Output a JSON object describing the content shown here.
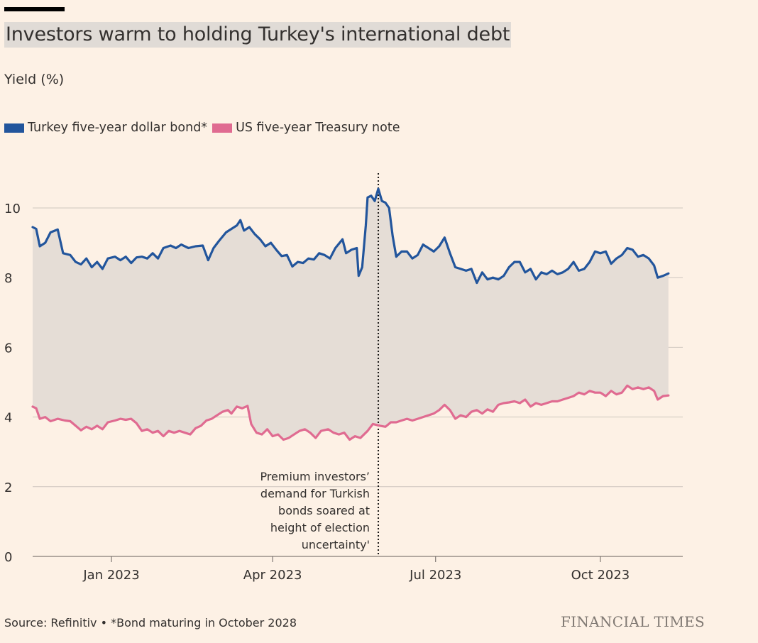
{
  "title": "Investors warm to holding Turkey's international debt",
  "subtitle": "Yield (%)",
  "legend": [
    {
      "label": "Turkey five-year dollar bond*",
      "color": "#22559c"
    },
    {
      "label": "US five-year Treasury note",
      "color": "#e06b91"
    }
  ],
  "footer": {
    "source": "Source: Refinitiv • *Bond maturing in October 2028",
    "brand": "FINANCIAL TIMES"
  },
  "chart_data": {
    "type": "line",
    "fill_between_series": true,
    "fill_color": "#e5ddd6",
    "x_unit": "date",
    "x_range": [
      "2022-11-18",
      "2023-11-16"
    ],
    "y_range": [
      0,
      10.5
    ],
    "y_ticks": [
      0,
      2,
      4,
      6,
      8,
      10
    ],
    "x_ticks": [
      {
        "label": "Jan 2023",
        "date": "2023-01-01"
      },
      {
        "label": "Apr 2023",
        "date": "2023-04-01"
      },
      {
        "label": "Jul 2023",
        "date": "2023-07-01"
      },
      {
        "label": "Oct 2023",
        "date": "2023-10-01"
      }
    ],
    "grid": true,
    "annotation": {
      "date": "2023-05-30",
      "lines": [
        "Premium investors’",
        "demand for Turkish",
        "bonds soared at",
        "height of election",
        "uncertainty'"
      ]
    },
    "series": [
      {
        "name": "Turkey five-year dollar bond*",
        "color": "#22559c",
        "points": [
          [
            "2022-11-18",
            9.45
          ],
          [
            "2022-11-20",
            9.4
          ],
          [
            "2022-11-22",
            8.9
          ],
          [
            "2022-11-25",
            9.0
          ],
          [
            "2022-11-28",
            9.3
          ],
          [
            "2022-12-02",
            9.38
          ],
          [
            "2022-12-05",
            8.7
          ],
          [
            "2022-12-09",
            8.65
          ],
          [
            "2022-12-12",
            8.45
          ],
          [
            "2022-12-15",
            8.38
          ],
          [
            "2022-12-18",
            8.55
          ],
          [
            "2022-12-21",
            8.3
          ],
          [
            "2022-12-24",
            8.45
          ],
          [
            "2022-12-27",
            8.25
          ],
          [
            "2022-12-30",
            8.55
          ],
          [
            "2023-01-03",
            8.6
          ],
          [
            "2023-01-06",
            8.5
          ],
          [
            "2023-01-09",
            8.6
          ],
          [
            "2023-01-12",
            8.42
          ],
          [
            "2023-01-15",
            8.58
          ],
          [
            "2023-01-18",
            8.6
          ],
          [
            "2023-01-21",
            8.55
          ],
          [
            "2023-01-24",
            8.7
          ],
          [
            "2023-01-27",
            8.55
          ],
          [
            "2023-01-30",
            8.85
          ],
          [
            "2023-02-03",
            8.92
          ],
          [
            "2023-02-06",
            8.85
          ],
          [
            "2023-02-09",
            8.95
          ],
          [
            "2023-02-13",
            8.85
          ],
          [
            "2023-02-17",
            8.9
          ],
          [
            "2023-02-21",
            8.92
          ],
          [
            "2023-02-24",
            8.5
          ],
          [
            "2023-02-27",
            8.85
          ],
          [
            "2023-03-02",
            9.05
          ],
          [
            "2023-03-06",
            9.3
          ],
          [
            "2023-03-09",
            9.4
          ],
          [
            "2023-03-12",
            9.5
          ],
          [
            "2023-03-14",
            9.65
          ],
          [
            "2023-03-16",
            9.35
          ],
          [
            "2023-03-19",
            9.45
          ],
          [
            "2023-03-22",
            9.25
          ],
          [
            "2023-03-25",
            9.1
          ],
          [
            "2023-03-28",
            8.9
          ],
          [
            "2023-03-31",
            9.0
          ],
          [
            "2023-04-03",
            8.8
          ],
          [
            "2023-04-06",
            8.62
          ],
          [
            "2023-04-09",
            8.65
          ],
          [
            "2023-04-12",
            8.32
          ],
          [
            "2023-04-15",
            8.45
          ],
          [
            "2023-04-18",
            8.42
          ],
          [
            "2023-04-21",
            8.55
          ],
          [
            "2023-04-24",
            8.52
          ],
          [
            "2023-04-27",
            8.7
          ],
          [
            "2023-04-30",
            8.65
          ],
          [
            "2023-05-03",
            8.55
          ],
          [
            "2023-05-06",
            8.85
          ],
          [
            "2023-05-10",
            9.1
          ],
          [
            "2023-05-12",
            8.7
          ],
          [
            "2023-05-15",
            8.8
          ],
          [
            "2023-05-18",
            8.85
          ],
          [
            "2023-05-19",
            8.05
          ],
          [
            "2023-05-21",
            8.3
          ],
          [
            "2023-05-23",
            9.5
          ],
          [
            "2023-05-24",
            10.3
          ],
          [
            "2023-05-26",
            10.35
          ],
          [
            "2023-05-28",
            10.2
          ],
          [
            "2023-05-30",
            10.55
          ],
          [
            "2023-06-01",
            10.2
          ],
          [
            "2023-06-03",
            10.15
          ],
          [
            "2023-06-05",
            10.0
          ],
          [
            "2023-06-07",
            9.2
          ],
          [
            "2023-06-09",
            8.6
          ],
          [
            "2023-06-12",
            8.75
          ],
          [
            "2023-06-15",
            8.75
          ],
          [
            "2023-06-18",
            8.55
          ],
          [
            "2023-06-21",
            8.65
          ],
          [
            "2023-06-24",
            8.95
          ],
          [
            "2023-06-27",
            8.85
          ],
          [
            "2023-06-30",
            8.75
          ],
          [
            "2023-07-03",
            8.9
          ],
          [
            "2023-07-06",
            9.15
          ],
          [
            "2023-07-09",
            8.7
          ],
          [
            "2023-07-12",
            8.3
          ],
          [
            "2023-07-15",
            8.25
          ],
          [
            "2023-07-18",
            8.2
          ],
          [
            "2023-07-21",
            8.25
          ],
          [
            "2023-07-24",
            7.85
          ],
          [
            "2023-07-27",
            8.15
          ],
          [
            "2023-07-30",
            7.95
          ],
          [
            "2023-08-02",
            8.0
          ],
          [
            "2023-08-05",
            7.95
          ],
          [
            "2023-08-08",
            8.05
          ],
          [
            "2023-08-11",
            8.3
          ],
          [
            "2023-08-14",
            8.45
          ],
          [
            "2023-08-17",
            8.45
          ],
          [
            "2023-08-20",
            8.15
          ],
          [
            "2023-08-23",
            8.25
          ],
          [
            "2023-08-26",
            7.95
          ],
          [
            "2023-08-29",
            8.15
          ],
          [
            "2023-09-01",
            8.1
          ],
          [
            "2023-09-04",
            8.2
          ],
          [
            "2023-09-07",
            8.1
          ],
          [
            "2023-09-10",
            8.15
          ],
          [
            "2023-09-13",
            8.25
          ],
          [
            "2023-09-16",
            8.45
          ],
          [
            "2023-09-19",
            8.2
          ],
          [
            "2023-09-22",
            8.25
          ],
          [
            "2023-09-25",
            8.45
          ],
          [
            "2023-09-28",
            8.75
          ],
          [
            "2023-10-01",
            8.7
          ],
          [
            "2023-10-04",
            8.75
          ],
          [
            "2023-10-07",
            8.4
          ],
          [
            "2023-10-10",
            8.55
          ],
          [
            "2023-10-13",
            8.65
          ],
          [
            "2023-10-16",
            8.85
          ],
          [
            "2023-10-19",
            8.8
          ],
          [
            "2023-10-22",
            8.6
          ],
          [
            "2023-10-25",
            8.65
          ],
          [
            "2023-10-28",
            8.55
          ],
          [
            "2023-10-31",
            8.35
          ],
          [
            "2023-11-02",
            8.0
          ],
          [
            "2023-11-05",
            8.05
          ],
          [
            "2023-11-08",
            8.12
          ]
        ]
      },
      {
        "name": "US five-year Treasury note",
        "color": "#e06b91",
        "points": [
          [
            "2022-11-18",
            4.3
          ],
          [
            "2022-11-20",
            4.25
          ],
          [
            "2022-11-22",
            3.95
          ],
          [
            "2022-11-25",
            4.0
          ],
          [
            "2022-11-28",
            3.88
          ],
          [
            "2022-12-02",
            3.95
          ],
          [
            "2022-12-06",
            3.9
          ],
          [
            "2022-12-09",
            3.88
          ],
          [
            "2022-12-12",
            3.75
          ],
          [
            "2022-12-15",
            3.62
          ],
          [
            "2022-12-18",
            3.72
          ],
          [
            "2022-12-21",
            3.65
          ],
          [
            "2022-12-24",
            3.75
          ],
          [
            "2022-12-27",
            3.65
          ],
          [
            "2022-12-30",
            3.85
          ],
          [
            "2023-01-03",
            3.9
          ],
          [
            "2023-01-06",
            3.95
          ],
          [
            "2023-01-09",
            3.92
          ],
          [
            "2023-01-12",
            3.95
          ],
          [
            "2023-01-15",
            3.82
          ],
          [
            "2023-01-18",
            3.6
          ],
          [
            "2023-01-21",
            3.65
          ],
          [
            "2023-01-24",
            3.55
          ],
          [
            "2023-01-27",
            3.6
          ],
          [
            "2023-01-30",
            3.45
          ],
          [
            "2023-02-02",
            3.6
          ],
          [
            "2023-02-05",
            3.55
          ],
          [
            "2023-02-08",
            3.6
          ],
          [
            "2023-02-11",
            3.55
          ],
          [
            "2023-02-14",
            3.5
          ],
          [
            "2023-02-17",
            3.68
          ],
          [
            "2023-02-20",
            3.75
          ],
          [
            "2023-02-23",
            3.9
          ],
          [
            "2023-02-26",
            3.95
          ],
          [
            "2023-03-01",
            4.05
          ],
          [
            "2023-03-04",
            4.15
          ],
          [
            "2023-03-07",
            4.2
          ],
          [
            "2023-03-09",
            4.1
          ],
          [
            "2023-03-12",
            4.3
          ],
          [
            "2023-03-15",
            4.25
          ],
          [
            "2023-03-18",
            4.32
          ],
          [
            "2023-03-20",
            3.8
          ],
          [
            "2023-03-23",
            3.55
          ],
          [
            "2023-03-26",
            3.5
          ],
          [
            "2023-03-29",
            3.65
          ],
          [
            "2023-04-01",
            3.45
          ],
          [
            "2023-04-04",
            3.5
          ],
          [
            "2023-04-07",
            3.35
          ],
          [
            "2023-04-10",
            3.4
          ],
          [
            "2023-04-13",
            3.5
          ],
          [
            "2023-04-16",
            3.6
          ],
          [
            "2023-04-19",
            3.65
          ],
          [
            "2023-04-22",
            3.55
          ],
          [
            "2023-04-25",
            3.4
          ],
          [
            "2023-04-28",
            3.6
          ],
          [
            "2023-05-02",
            3.65
          ],
          [
            "2023-05-05",
            3.55
          ],
          [
            "2023-05-08",
            3.5
          ],
          [
            "2023-05-11",
            3.55
          ],
          [
            "2023-05-14",
            3.35
          ],
          [
            "2023-05-17",
            3.45
          ],
          [
            "2023-05-20",
            3.4
          ],
          [
            "2023-05-24",
            3.6
          ],
          [
            "2023-05-27",
            3.8
          ],
          [
            "2023-05-31",
            3.75
          ],
          [
            "2023-06-03",
            3.72
          ],
          [
            "2023-06-06",
            3.85
          ],
          [
            "2023-06-09",
            3.85
          ],
          [
            "2023-06-12",
            3.9
          ],
          [
            "2023-06-15",
            3.95
          ],
          [
            "2023-06-18",
            3.9
          ],
          [
            "2023-06-21",
            3.95
          ],
          [
            "2023-06-24",
            4.0
          ],
          [
            "2023-06-27",
            4.05
          ],
          [
            "2023-06-30",
            4.1
          ],
          [
            "2023-07-03",
            4.2
          ],
          [
            "2023-07-06",
            4.35
          ],
          [
            "2023-07-09",
            4.2
          ],
          [
            "2023-07-12",
            3.95
          ],
          [
            "2023-07-15",
            4.05
          ],
          [
            "2023-07-18",
            4.0
          ],
          [
            "2023-07-21",
            4.15
          ],
          [
            "2023-07-24",
            4.2
          ],
          [
            "2023-07-27",
            4.1
          ],
          [
            "2023-07-30",
            4.22
          ],
          [
            "2023-08-02",
            4.15
          ],
          [
            "2023-08-05",
            4.35
          ],
          [
            "2023-08-08",
            4.4
          ],
          [
            "2023-08-11",
            4.42
          ],
          [
            "2023-08-14",
            4.45
          ],
          [
            "2023-08-17",
            4.4
          ],
          [
            "2023-08-20",
            4.5
          ],
          [
            "2023-08-23",
            4.3
          ],
          [
            "2023-08-26",
            4.4
          ],
          [
            "2023-08-29",
            4.35
          ],
          [
            "2023-09-01",
            4.4
          ],
          [
            "2023-09-04",
            4.45
          ],
          [
            "2023-09-07",
            4.45
          ],
          [
            "2023-09-10",
            4.5
          ],
          [
            "2023-09-13",
            4.55
          ],
          [
            "2023-09-16",
            4.6
          ],
          [
            "2023-09-19",
            4.7
          ],
          [
            "2023-09-22",
            4.65
          ],
          [
            "2023-09-25",
            4.75
          ],
          [
            "2023-09-28",
            4.7
          ],
          [
            "2023-10-01",
            4.7
          ],
          [
            "2023-10-04",
            4.6
          ],
          [
            "2023-10-07",
            4.75
          ],
          [
            "2023-10-10",
            4.65
          ],
          [
            "2023-10-13",
            4.7
          ],
          [
            "2023-10-16",
            4.9
          ],
          [
            "2023-10-19",
            4.8
          ],
          [
            "2023-10-22",
            4.85
          ],
          [
            "2023-10-25",
            4.8
          ],
          [
            "2023-10-28",
            4.85
          ],
          [
            "2023-10-31",
            4.75
          ],
          [
            "2023-11-02",
            4.5
          ],
          [
            "2023-11-05",
            4.6
          ],
          [
            "2023-11-08",
            4.62
          ]
        ]
      }
    ]
  }
}
